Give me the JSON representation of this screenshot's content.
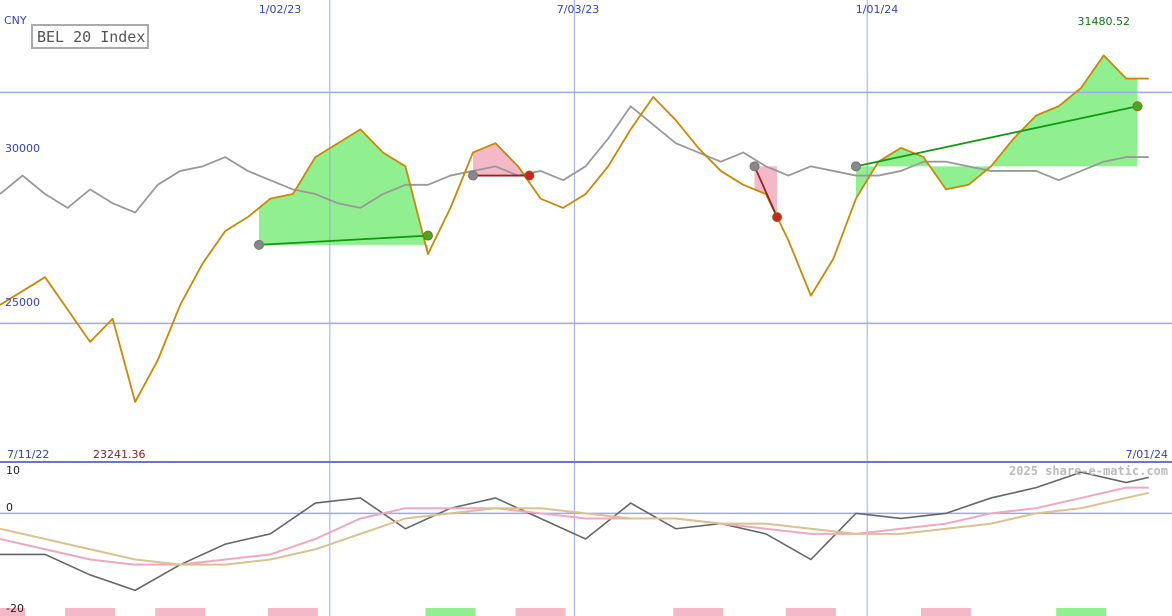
{
  "colors": {
    "price": "#cc8800",
    "benchmark": "#999999",
    "gain_fill": "#90f090",
    "loss_fill": "#f5b8c8",
    "gridline": "#99aaee",
    "axis_text": "#3344bb",
    "high_text": "#117711",
    "low_text": "#882222",
    "trend_up": "#119911",
    "trend_down": "#992222",
    "osc_fast": "#666666",
    "osc_mid": "#f0a8c0",
    "osc_slow": "#ddc090",
    "watermark": "#bbbbbb"
  },
  "chart_data": [
    {
      "type": "line",
      "title": "BEL 20 Index",
      "currency": "CNY",
      "ylim": [
        22000,
        32000
      ],
      "yticks": [
        25000,
        30000
      ],
      "x_start": "2022-07-11",
      "x_end": "2024-07-01",
      "xticks": [
        "2023-02-01",
        "2023-07-03",
        "2024-01-01"
      ],
      "xtick_labels": [
        "1/02/23",
        "7/03/23",
        "1/01/24"
      ],
      "range_start_label": "7/11/22",
      "range_end_label": "7/01/24",
      "high_label": "31480.52",
      "low_label": "23241.36",
      "grid": true,
      "series": [
        {
          "role": "price",
          "x": [
            "2022-07-11",
            "2022-07-25",
            "2022-08-08",
            "2022-08-22",
            "2022-09-05",
            "2022-09-19",
            "2022-10-03",
            "2022-10-17",
            "2022-10-31",
            "2022-11-14",
            "2022-11-28",
            "2022-12-12",
            "2022-12-26",
            "2023-01-09",
            "2023-01-23",
            "2023-02-06",
            "2023-02-20",
            "2023-03-06",
            "2023-03-20",
            "2023-04-03",
            "2023-04-17",
            "2023-05-01",
            "2023-05-15",
            "2023-05-29",
            "2023-06-12",
            "2023-06-26",
            "2023-07-10",
            "2023-07-24",
            "2023-08-07",
            "2023-08-21",
            "2023-09-04",
            "2023-09-18",
            "2023-10-02",
            "2023-10-16",
            "2023-10-30",
            "2023-11-13",
            "2023-11-27",
            "2023-12-11",
            "2023-12-25",
            "2024-01-08",
            "2024-01-22",
            "2024-02-05",
            "2024-02-19",
            "2024-03-04",
            "2024-03-18",
            "2024-04-01",
            "2024-04-15",
            "2024-04-29",
            "2024-05-13",
            "2024-05-27",
            "2024-06-10",
            "2024-06-24"
          ],
          "y": [
            25400,
            25700,
            26000,
            25300,
            24600,
            25100,
            23300,
            24200,
            25400,
            26300,
            27000,
            27300,
            27700,
            27800,
            28600,
            28900,
            29200,
            28700,
            28400,
            26500,
            27500,
            28700,
            28900,
            28400,
            27700,
            27500,
            27800,
            28400,
            29200,
            29900,
            29400,
            28800,
            28300,
            28000,
            27800,
            26800,
            25600,
            26400,
            27700,
            28500,
            28800,
            28600,
            27900,
            28000,
            28400,
            29000,
            29500,
            29700,
            30100,
            30800,
            30300,
            30300
          ],
          "start_value": 25400,
          "end_value": 30300
        },
        {
          "role": "benchmark",
          "x": [
            "2022-07-11",
            "2022-07-25",
            "2022-08-08",
            "2022-08-22",
            "2022-09-05",
            "2022-09-19",
            "2022-10-03",
            "2022-10-17",
            "2022-10-31",
            "2022-11-14",
            "2022-11-28",
            "2022-12-12",
            "2022-12-26",
            "2023-01-09",
            "2023-01-23",
            "2023-02-06",
            "2023-02-20",
            "2023-03-06",
            "2023-03-20",
            "2023-04-03",
            "2023-04-17",
            "2023-05-01",
            "2023-05-15",
            "2023-05-29",
            "2023-06-12",
            "2023-06-26",
            "2023-07-10",
            "2023-07-24",
            "2023-08-07",
            "2023-08-21",
            "2023-09-04",
            "2023-09-18",
            "2023-10-02",
            "2023-10-16",
            "2023-10-30",
            "2023-11-13",
            "2023-11-27",
            "2023-12-11",
            "2023-12-25",
            "2024-01-08",
            "2024-01-22",
            "2024-02-05",
            "2024-02-19",
            "2024-03-04",
            "2024-03-18",
            "2024-04-01",
            "2024-04-15",
            "2024-04-29",
            "2024-05-13",
            "2024-05-27",
            "2024-06-10",
            "2024-06-24"
          ],
          "y": [
            27800,
            28200,
            27800,
            27500,
            27900,
            27600,
            27400,
            28000,
            28300,
            28400,
            28600,
            28300,
            28100,
            27900,
            27800,
            27600,
            27500,
            27800,
            28000,
            28000,
            28200,
            28300,
            28400,
            28200,
            28300,
            28100,
            28400,
            29000,
            29700,
            29300,
            28900,
            28700,
            28500,
            28700,
            28400,
            28200,
            28400,
            28300,
            28200,
            28200,
            28300,
            28500,
            28500,
            28400,
            28300,
            28300,
            28300,
            28100,
            28300,
            28500,
            28600,
            28600
          ],
          "start_value": 27800,
          "end_value": 28600
        }
      ],
      "signals": [
        {
          "start": {
            "x": "2022-12-19",
            "y": 26700
          },
          "end": {
            "x": "2023-04-03",
            "y": 26900
          },
          "outcome": "gain"
        },
        {
          "start": {
            "x": "2023-05-01",
            "y": 28200
          },
          "end": {
            "x": "2023-06-05",
            "y": 28200
          },
          "outcome": "loss"
        },
        {
          "start": {
            "x": "2023-10-23",
            "y": 28400
          },
          "end": {
            "x": "2023-11-06",
            "y": 27300
          },
          "outcome": "loss"
        },
        {
          "start": {
            "x": "2023-12-25",
            "y": 28400
          },
          "end": {
            "x": "2024-06-17",
            "y": 29700
          },
          "outcome": "gain"
        }
      ]
    },
    {
      "type": "line",
      "role": "oscillator",
      "ylim": [
        -20,
        10
      ],
      "yticks": [
        10,
        0,
        -20
      ],
      "grid": true,
      "x": [
        "2022-07-11",
        "2022-08-08",
        "2022-09-05",
        "2022-10-03",
        "2022-10-31",
        "2022-11-28",
        "2022-12-26",
        "2023-01-23",
        "2023-02-20",
        "2023-03-20",
        "2023-04-17",
        "2023-05-15",
        "2023-06-12",
        "2023-07-10",
        "2023-08-07",
        "2023-09-04",
        "2023-10-02",
        "2023-10-30",
        "2023-11-27",
        "2023-12-25",
        "2024-01-22",
        "2024-02-19",
        "2024-03-18",
        "2024-04-15",
        "2024-05-13",
        "2024-06-10",
        "2024-06-24"
      ],
      "series": [
        {
          "role": "fast",
          "y": [
            -8,
            -8,
            -12,
            -15,
            -10,
            -6,
            -4,
            2,
            3,
            -3,
            1,
            3,
            -1,
            -5,
            2,
            -3,
            -2,
            -4,
            -9,
            0,
            -1,
            0,
            3,
            5,
            8,
            6,
            7
          ]
        },
        {
          "role": "mid",
          "y": [
            -5,
            -7,
            -9,
            -10,
            -10,
            -9,
            -8,
            -5,
            -1,
            1,
            1,
            1,
            0,
            -1,
            -1,
            -1,
            -2,
            -3,
            -4,
            -4,
            -3,
            -2,
            0,
            1,
            3,
            5,
            5
          ]
        },
        {
          "role": "slow",
          "y": [
            -3,
            -5,
            -7,
            -9,
            -10,
            -10,
            -9,
            -7,
            -4,
            -1,
            0,
            1,
            1,
            0,
            -1,
            -1,
            -2,
            -2,
            -3,
            -4,
            -4,
            -3,
            -2,
            0,
            1,
            3,
            4
          ]
        }
      ],
      "histogram": [
        {
          "x": "2022-07-11",
          "sign": "neg"
        },
        {
          "x": "2022-09-05",
          "sign": "neg"
        },
        {
          "x": "2022-10-31",
          "sign": "neg"
        },
        {
          "x": "2023-01-09",
          "sign": "neg"
        },
        {
          "x": "2023-04-17",
          "sign": "pos"
        },
        {
          "x": "2023-06-12",
          "sign": "neg"
        },
        {
          "x": "2023-09-18",
          "sign": "neg"
        },
        {
          "x": "2023-11-27",
          "sign": "neg"
        },
        {
          "x": "2024-02-19",
          "sign": "neg"
        },
        {
          "x": "2024-05-13",
          "sign": "pos"
        }
      ]
    }
  ],
  "watermark": "2025 share-e-matic.com"
}
